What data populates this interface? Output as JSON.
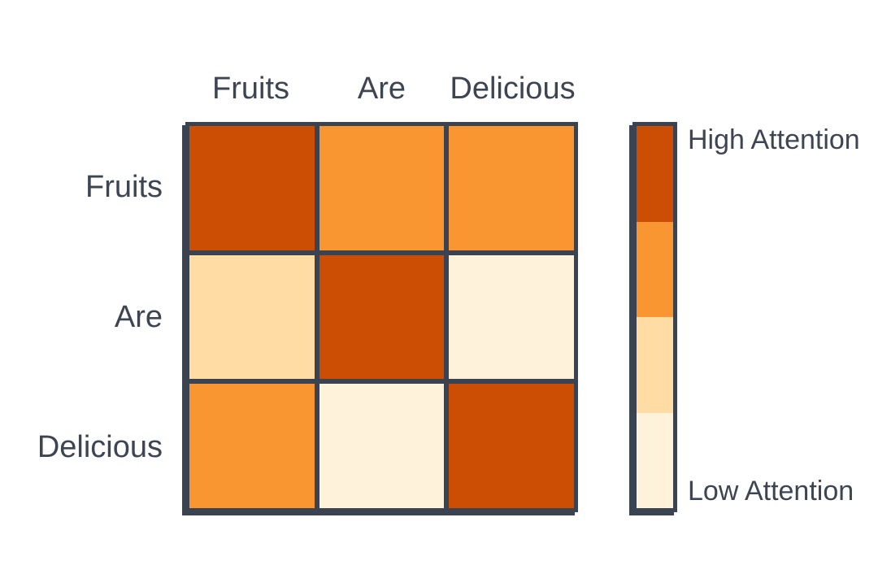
{
  "figure": {
    "kind": "attention-heatmap"
  },
  "matrix": {
    "col_labels": [
      "Fruits",
      "Are",
      "Delicious"
    ],
    "row_labels": [
      "Fruits",
      "Are",
      "Delicious"
    ],
    "cells": [
      [
        "high",
        "medium-high",
        "medium-high"
      ],
      [
        "medium-low",
        "high",
        "low"
      ],
      [
        "medium-high",
        "low",
        "high"
      ]
    ]
  },
  "legend": {
    "high_label": "High Attention",
    "low_label": "Low Attention",
    "segments_top_to_bottom": [
      "high",
      "medium-high",
      "medium-low",
      "low"
    ]
  },
  "colors": {
    "high": "#CB4E04",
    "medium-high": "#FA9632",
    "medium-low": "#FEDCA3",
    "low": "#FEF2DA",
    "border": "#3B4350",
    "text": "#3E4552",
    "background": "#FFFFFF"
  },
  "chart_data": {
    "type": "heatmap",
    "title": "",
    "x": [
      "Fruits",
      "Are",
      "Delicious"
    ],
    "y": [
      "Fruits",
      "Are",
      "Delicious"
    ],
    "value_levels": [
      [
        "high",
        "medium-high",
        "medium-high"
      ],
      [
        "medium-low",
        "high",
        "low"
      ],
      [
        "medium-high",
        "low",
        "high"
      ]
    ],
    "values_normalized_estimate": [
      [
        1.0,
        0.66,
        0.66
      ],
      [
        0.33,
        1.0,
        0.0
      ],
      [
        0.66,
        0.0,
        1.0
      ]
    ],
    "color_scale": [
      {
        "level": "high",
        "color": "#CB4E04"
      },
      {
        "level": "medium-high",
        "color": "#FA9632"
      },
      {
        "level": "medium-low",
        "color": "#FEDCA3"
      },
      {
        "level": "low",
        "color": "#FEF2DA"
      }
    ],
    "legend": {
      "position": "right",
      "top_label": "High Attention",
      "bottom_label": "Low Attention"
    },
    "grid": "thick dark borders between cells",
    "xlabel": "",
    "ylabel": ""
  }
}
